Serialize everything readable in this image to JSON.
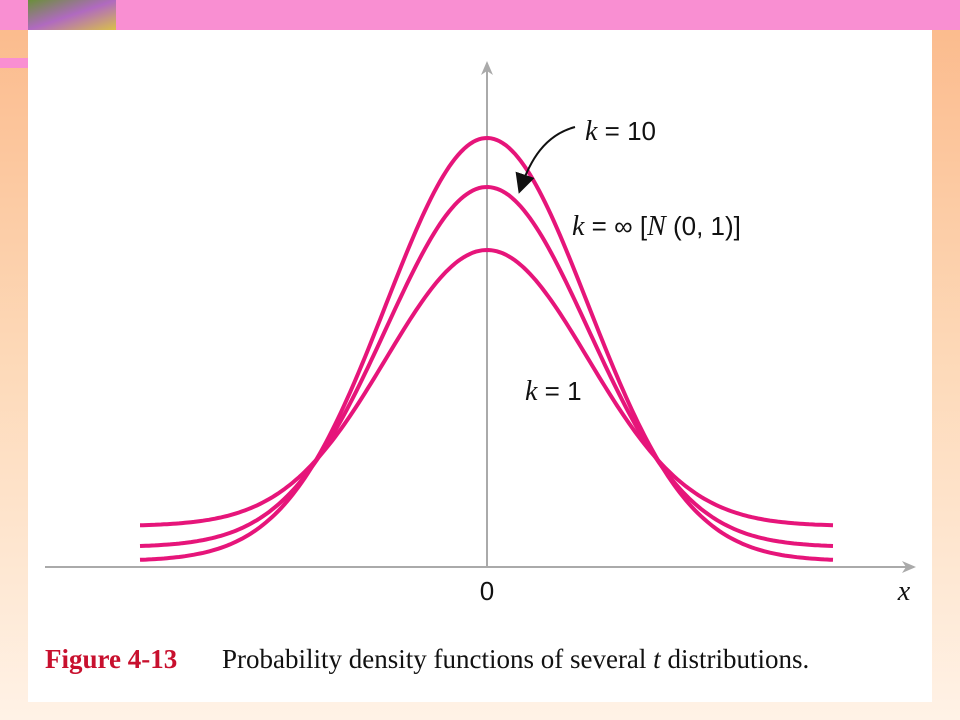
{
  "figure": {
    "labels": [
      {
        "parts": [
          "k",
          " = 10"
        ]
      },
      {
        "parts": [
          "k",
          " = ∞ [",
          "N",
          " (0, 1)]"
        ]
      },
      {
        "parts": [
          "k",
          " = 1"
        ]
      }
    ],
    "origin_label": "0",
    "x_axis_label": "x",
    "caption": {
      "number": "Figure 4-13",
      "text": [
        "Probability density functions of several ",
        "t",
        " distributions."
      ]
    }
  }
}
